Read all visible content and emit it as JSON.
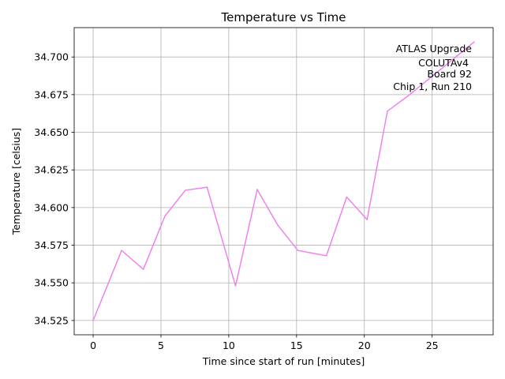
{
  "chart_data": {
    "type": "line",
    "title": "Temperature vs Time",
    "xlabel": "Time since start of run [minutes]",
    "ylabel": "Temperature [celsius]",
    "xlim": [
      -1.4,
      29.5
    ],
    "ylim": [
      34.5155,
      34.7195
    ],
    "grid": true,
    "xticks": [
      0,
      5,
      10,
      15,
      20,
      25
    ],
    "xtick_labels": [
      "0",
      "5",
      "10",
      "15",
      "20",
      "25"
    ],
    "yticks": [
      34.525,
      34.55,
      34.575,
      34.6,
      34.625,
      34.65,
      34.675,
      34.7
    ],
    "ytick_labels": [
      "34.525",
      "34.550",
      "34.575",
      "34.600",
      "34.625",
      "34.650",
      "34.675",
      "34.700"
    ],
    "series": [
      {
        "name": "Temperature",
        "color": "#ee82ee",
        "x": [
          0,
          2.1,
          3.7,
          5.3,
          6.8,
          8.4,
          10.5,
          12.1,
          13.6,
          15.1,
          17.2,
          18.7,
          20.2,
          21.7,
          23.2,
          24.7,
          26.2,
          28.1
        ],
        "y": [
          34.525,
          34.5715,
          34.559,
          34.5945,
          34.6115,
          34.6135,
          34.548,
          34.612,
          34.5885,
          34.5715,
          34.568,
          34.607,
          34.592,
          34.664,
          34.674,
          34.685,
          34.696,
          34.71
        ]
      }
    ],
    "annotation": {
      "position": "top-right",
      "lines": [
        "ATLAS Upgrade",
        "COLUTAv4",
        "Board 92",
        "Chip 1, Run 210"
      ]
    }
  }
}
